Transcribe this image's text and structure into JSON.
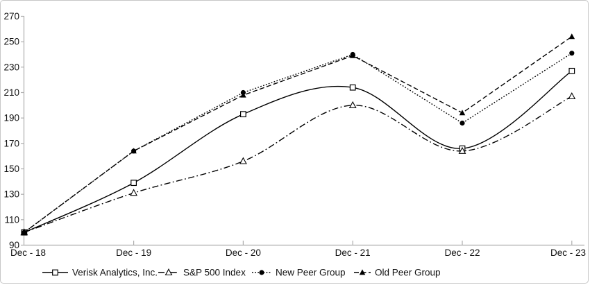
{
  "chart_data": {
    "type": "line",
    "title": "",
    "xlabel": "",
    "ylabel": "",
    "x_labels": [
      "Dec - 18",
      "Dec - 19",
      "Dec - 20",
      "Dec - 21",
      "Dec - 22",
      "Dec - 23"
    ],
    "y_ticks": [
      90,
      110,
      130,
      150,
      170,
      190,
      210,
      230,
      250,
      270
    ],
    "ylim": [
      90,
      270
    ],
    "grid": false,
    "legend_position": "bottom",
    "series": [
      {
        "name": "Verisk Analytics, Inc.",
        "marker": "open-square",
        "line_style": "solid",
        "smooth": true,
        "values": [
          100,
          139,
          193,
          214,
          166,
          227
        ]
      },
      {
        "name": "S&P 500 Index",
        "marker": "open-triangle",
        "line_style": "dash-dot",
        "smooth": true,
        "values": [
          100,
          131,
          156,
          200,
          164,
          207
        ]
      },
      {
        "name": "New Peer Group",
        "marker": "filled-circle",
        "line_style": "dotted",
        "smooth": false,
        "values": [
          100,
          164,
          210,
          240,
          186,
          241
        ]
      },
      {
        "name": "Old Peer Group",
        "marker": "filled-triangle",
        "line_style": "dashed",
        "smooth": false,
        "values": [
          100,
          164,
          208,
          239,
          194,
          254
        ]
      }
    ],
    "colors": {
      "series_line": "#000000",
      "axis": "#adadad",
      "tick": "#adadad",
      "label_text": "#111111",
      "background": "#ffffff",
      "frame_border": "#c7c7c7"
    }
  }
}
